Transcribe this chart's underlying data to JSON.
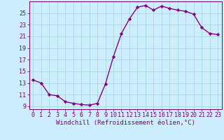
{
  "x": [
    0,
    1,
    2,
    3,
    4,
    5,
    6,
    7,
    8,
    9,
    10,
    11,
    12,
    13,
    14,
    15,
    16,
    17,
    18,
    19,
    20,
    21,
    22,
    23
  ],
  "y": [
    13.5,
    13.0,
    11.0,
    10.8,
    9.8,
    9.5,
    9.3,
    9.2,
    9.5,
    12.8,
    17.5,
    21.5,
    24.0,
    26.0,
    26.3,
    25.5,
    26.2,
    25.8,
    25.5,
    25.3,
    24.8,
    22.5,
    21.5,
    21.3
  ],
  "line_color": "#880088",
  "marker": "D",
  "marker_size": 2.2,
  "line_width": 1.0,
  "bg_color": "#cceeff",
  "grid_color": "#aadddd",
  "xlabel": "Windchill (Refroidissement éolien,°C)",
  "ylim": [
    8.5,
    27.0
  ],
  "xlim": [
    -0.5,
    23.5
  ],
  "yticks": [
    9,
    11,
    13,
    15,
    17,
    19,
    21,
    23,
    25
  ],
  "xticks": [
    0,
    1,
    2,
    3,
    4,
    5,
    6,
    7,
    8,
    9,
    10,
    11,
    12,
    13,
    14,
    15,
    16,
    17,
    18,
    19,
    20,
    21,
    22,
    23
  ],
  "xlabel_fontsize": 6.5,
  "tick_fontsize": 6.0,
  "label_color": "#770077"
}
